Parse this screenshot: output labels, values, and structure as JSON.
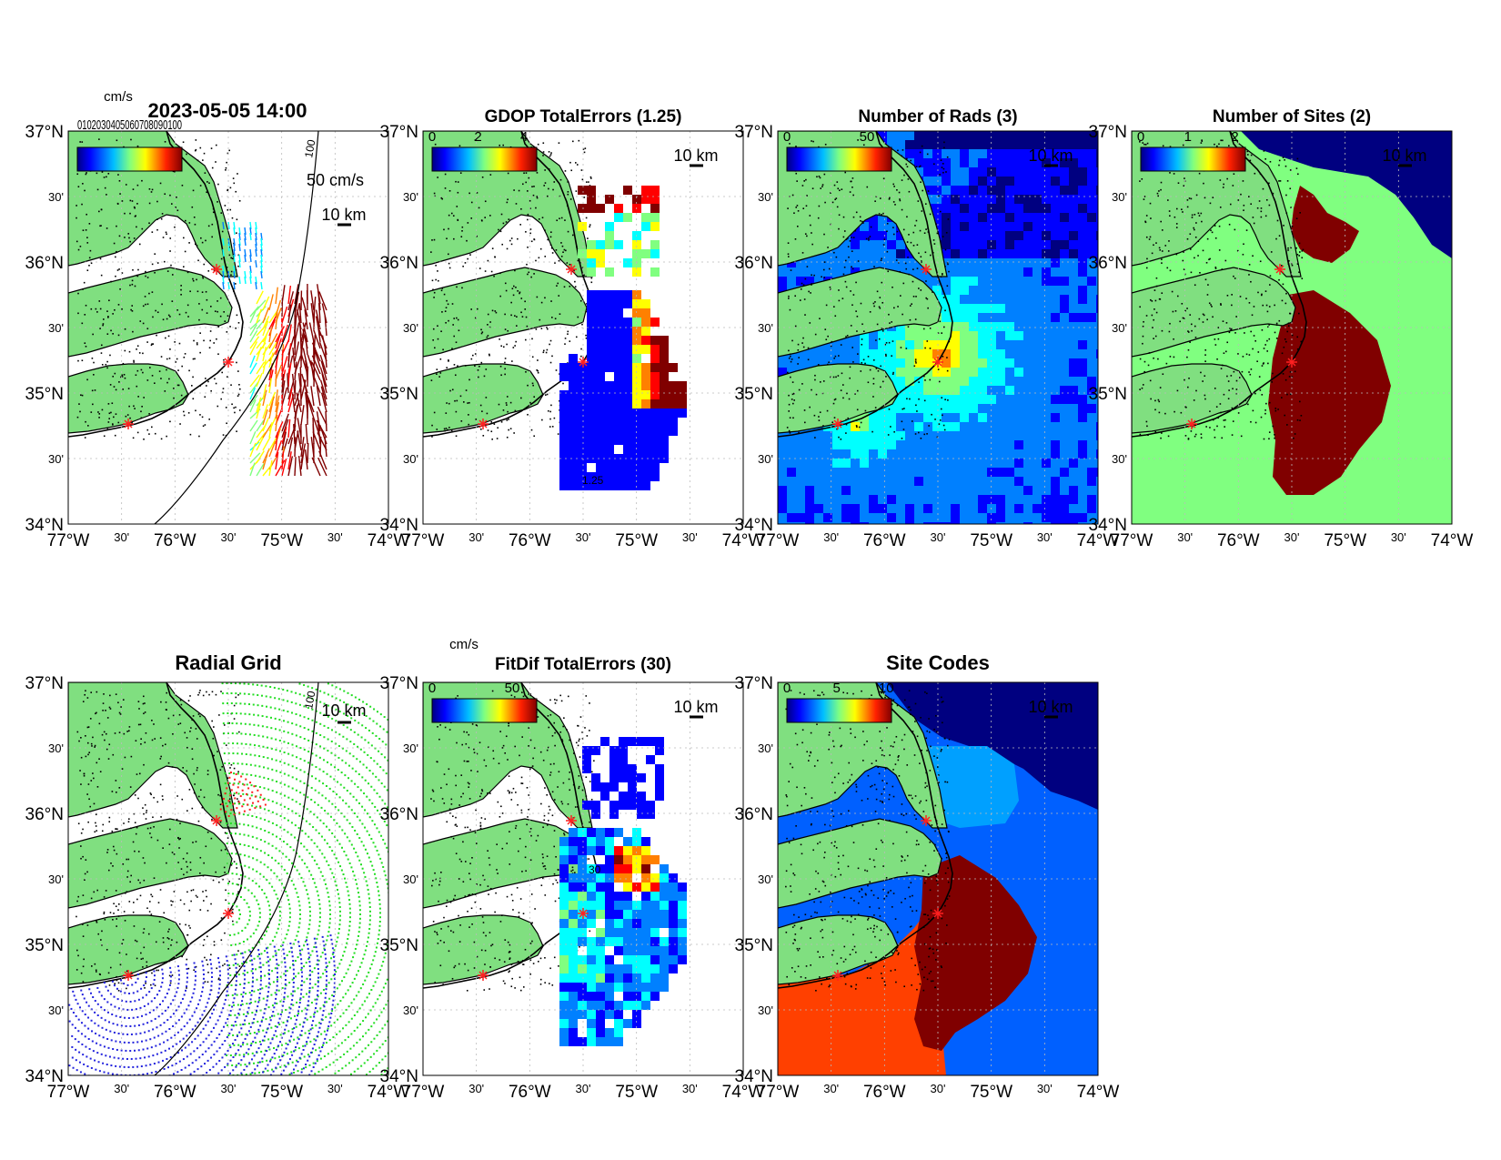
{
  "figure_title": "2023-05-05 14:00",
  "panels": [
    {
      "id": "p1",
      "title": "",
      "cbar_units": "cm/s",
      "cbar_ticks": [],
      "cbar_overlap_text": "0102030405060708090100",
      "scale_label": "10 km",
      "vector_label": "50 cm/s",
      "contour_label": "100"
    },
    {
      "id": "p2",
      "title": "GDOP TotalErrors (1.25)",
      "cbar_units": "",
      "cbar_ticks": [
        "0",
        "2",
        "4"
      ],
      "scale_label": "10 km",
      "contour_label": "1.25"
    },
    {
      "id": "p3",
      "title": "Number of Rads (3)",
      "cbar_units": "",
      "cbar_ticks": [
        "0",
        "50"
      ],
      "scale_label": "10 km",
      "contour_label": "3"
    },
    {
      "id": "p4",
      "title": "Number of Sites (2)",
      "cbar_units": "",
      "cbar_ticks": [
        "0",
        "1",
        "2"
      ],
      "scale_label": "10 km"
    },
    {
      "id": "p5",
      "title": "Radial Grid",
      "cbar_units": "",
      "cbar_ticks": [],
      "scale_label": "10 km",
      "contour_label": "100"
    },
    {
      "id": "p6",
      "title": "FitDif TotalErrors (30)",
      "cbar_units": "cm/s",
      "cbar_ticks": [
        "0",
        "50"
      ],
      "scale_label": "10 km",
      "contour_label": "30"
    },
    {
      "id": "p7",
      "title": "Site Codes",
      "cbar_units": "",
      "cbar_ticks": [
        "0",
        "5",
        "10"
      ],
      "scale_label": "10 km"
    }
  ],
  "axes": {
    "lat_labels": [
      "37°N",
      "30'",
      "36°N",
      "30'",
      "35°N",
      "30'",
      "34°N"
    ],
    "lon_labels": [
      "77°W",
      "30'",
      "76°W",
      "30'",
      "75°W",
      "30'",
      "74°W"
    ]
  },
  "colors": {
    "land": "#80df80",
    "ocean": "#ffffff",
    "coast": "#000000",
    "site_marker": "#ff2020",
    "grid_site_a": "#ff2020",
    "grid_site_b": "#22dd22",
    "grid_site_c": "#2222dd",
    "jet": [
      "#000080",
      "#0000ff",
      "#0080ff",
      "#00ffff",
      "#80ff80",
      "#ffff00",
      "#ff8000",
      "#ff0000",
      "#800000"
    ]
  }
}
